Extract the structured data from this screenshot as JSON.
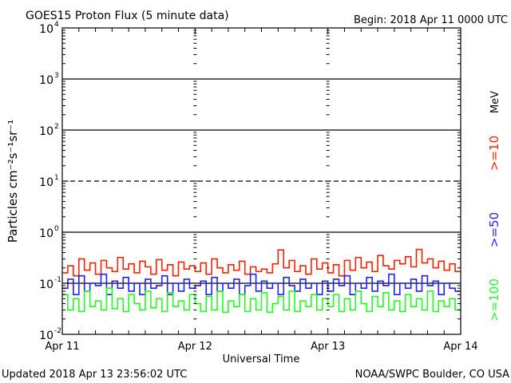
{
  "chart_data": {
    "type": "line",
    "title": "GOES15 Proton Flux (5 minute data)",
    "begin_label": "Begin: 2018 Apr 11 0000 UTC",
    "xlabel": "Universal Time",
    "ylabel": "Particles cm⁻²s⁻¹sr⁻¹",
    "x_tick_labels": [
      "Apr 11",
      "Apr 12",
      "Apr 13",
      "Apr 14"
    ],
    "xlim_hours": [
      0,
      72
    ],
    "y_scale": "log",
    "ylim": [
      0.01,
      10000
    ],
    "y_tick_labels": [
      {
        "base": "10",
        "exp": "4"
      },
      {
        "base": "10",
        "exp": "3"
      },
      {
        "base": "10",
        "exp": "2"
      },
      {
        "base": "10",
        "exp": "1"
      },
      {
        "base": "10",
        "exp": "0"
      },
      {
        "base": "10",
        "exp": "-1"
      },
      {
        "base": "10",
        "exp": "-2"
      }
    ],
    "reference_lines": [
      {
        "value": 1000,
        "style": "solid"
      },
      {
        "value": 100,
        "style": "solid"
      },
      {
        "value": 10,
        "style": "dashed"
      },
      {
        "value": 1,
        "style": "solid"
      },
      {
        "value": 0.1,
        "style": "solid"
      }
    ],
    "unit_label": "MeV",
    "series": [
      {
        "name": ">=10",
        "color": "#ff2000",
        "values": [
          0.16,
          0.22,
          0.14,
          0.3,
          0.18,
          0.25,
          0.15,
          0.28,
          0.2,
          0.17,
          0.32,
          0.19,
          0.24,
          0.16,
          0.27,
          0.21,
          0.15,
          0.29,
          0.18,
          0.23,
          0.14,
          0.26,
          0.19,
          0.22,
          0.17,
          0.25,
          0.15,
          0.3,
          0.2,
          0.16,
          0.23,
          0.18,
          0.27,
          0.15,
          0.21,
          0.17,
          0.19,
          0.16,
          0.24,
          0.45,
          0.2,
          0.28,
          0.17,
          0.22,
          0.15,
          0.3,
          0.19,
          0.25,
          0.16,
          0.23,
          0.14,
          0.28,
          0.18,
          0.32,
          0.2,
          0.26,
          0.17,
          0.35,
          0.22,
          0.19,
          0.28,
          0.24,
          0.33,
          0.21,
          0.46,
          0.25,
          0.3,
          0.2,
          0.27,
          0.18,
          0.24,
          0.17
        ]
      },
      {
        "name": ">=50",
        "color": "#2020ff",
        "values": [
          0.08,
          0.12,
          0.06,
          0.14,
          0.07,
          0.1,
          0.09,
          0.15,
          0.06,
          0.11,
          0.08,
          0.13,
          0.07,
          0.1,
          0.06,
          0.12,
          0.08,
          0.09,
          0.14,
          0.06,
          0.1,
          0.07,
          0.12,
          0.08,
          0.09,
          0.11,
          0.06,
          0.13,
          0.07,
          0.1,
          0.08,
          0.12,
          0.06,
          0.09,
          0.15,
          0.07,
          0.11,
          0.08,
          0.1,
          0.06,
          0.13,
          0.09,
          0.07,
          0.12,
          0.08,
          0.1,
          0.06,
          0.11,
          0.07,
          0.12,
          0.09,
          0.14,
          0.06,
          0.1,
          0.08,
          0.13,
          0.07,
          0.11,
          0.09,
          0.15,
          0.06,
          0.1,
          0.08,
          0.12,
          0.07,
          0.14,
          0.09,
          0.11,
          0.06,
          0.1,
          0.08,
          0.07
        ]
      },
      {
        "name": ">=100",
        "color": "#20ff20",
        "values": [
          0.06,
          0.03,
          0.05,
          0.028,
          0.07,
          0.035,
          0.045,
          0.03,
          0.08,
          0.032,
          0.05,
          0.028,
          0.06,
          0.04,
          0.03,
          0.07,
          0.033,
          0.05,
          0.028,
          0.065,
          0.035,
          0.045,
          0.03,
          0.06,
          0.04,
          0.028,
          0.055,
          0.03,
          0.07,
          0.027,
          0.045,
          0.035,
          0.06,
          0.028,
          0.05,
          0.03,
          0.065,
          0.027,
          0.04,
          0.055,
          0.03,
          0.07,
          0.028,
          0.045,
          0.035,
          0.06,
          0.03,
          0.05,
          0.035,
          0.06,
          0.028,
          0.05,
          0.03,
          0.07,
          0.04,
          0.028,
          0.055,
          0.035,
          0.065,
          0.03,
          0.045,
          0.028,
          0.06,
          0.035,
          0.05,
          0.03,
          0.07,
          0.028,
          0.045,
          0.035,
          0.05,
          0.03
        ]
      }
    ]
  },
  "footer": {
    "updated": "Updated 2018 Apr 13 23:56:02 UTC",
    "credit": "NOAA/SWPC Boulder, CO USA"
  }
}
